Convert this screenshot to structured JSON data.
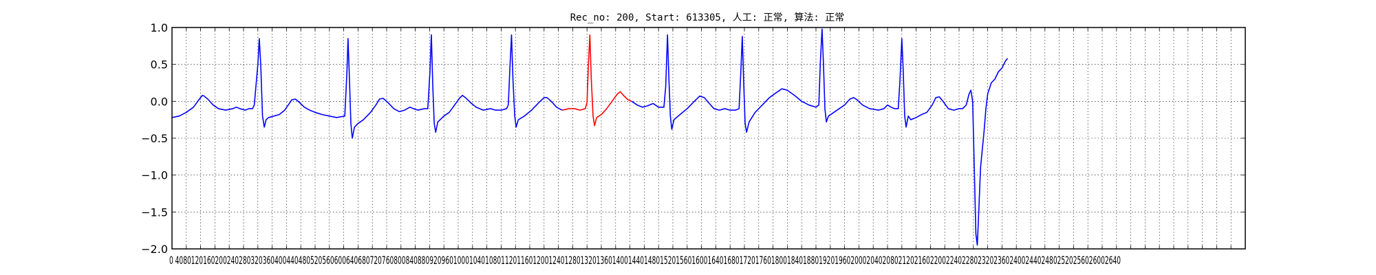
{
  "chart_data": {
    "type": "line",
    "title": "Rec_no: 200, Start: 613305, 人工: 正常, 算法: 正常",
    "xlabel": "",
    "ylabel": "",
    "xlim": [
      0,
      3000
    ],
    "ylim": [
      -2.0,
      1.0
    ],
    "grid": true,
    "xtick_step": 40,
    "y_ticks": [
      1.0,
      0.5,
      0.0,
      -0.5,
      -1.0,
      -1.5,
      -2.0
    ],
    "y_tick_labels": [
      "1.0",
      "0.5",
      "0.0",
      "−0.5",
      "−1.0",
      "−1.5",
      "−2.0"
    ],
    "x_tick_labels_visible": "0 4080120160200240280320360400440480520560600640680720760800840880920960100010401080112011601200124012801320136014001440148015201560160016401680172017601800184018801920196020002040208021202160220022402280232023602400244024802520256026002640",
    "series": [
      {
        "color": "#0000ff",
        "points": [
          [
            0,
            -0.22
          ],
          [
            20,
            -0.2
          ],
          [
            40,
            -0.15
          ],
          [
            60,
            -0.08
          ],
          [
            75,
            0.02
          ],
          [
            85,
            0.08
          ],
          [
            90,
            0.07
          ],
          [
            100,
            0.03
          ],
          [
            115,
            -0.05
          ],
          [
            130,
            -0.1
          ],
          [
            150,
            -0.12
          ],
          [
            170,
            -0.1
          ],
          [
            180,
            -0.08
          ],
          [
            190,
            -0.1
          ],
          [
            205,
            -0.12
          ],
          [
            215,
            -0.1
          ],
          [
            225,
            -0.1
          ],
          [
            230,
            -0.05
          ],
          [
            240,
            0.5
          ],
          [
            244,
            0.85
          ],
          [
            248,
            0.5
          ],
          [
            253,
            -0.2
          ],
          [
            258,
            -0.35
          ],
          [
            263,
            -0.25
          ],
          [
            270,
            -0.22
          ],
          [
            285,
            -0.2
          ],
          [
            300,
            -0.18
          ],
          [
            315,
            -0.12
          ],
          [
            325,
            -0.05
          ],
          [
            335,
            0.02
          ],
          [
            345,
            0.03
          ],
          [
            355,
            -0.01
          ],
          [
            370,
            -0.08
          ],
          [
            385,
            -0.12
          ],
          [
            400,
            -0.15
          ],
          [
            420,
            -0.18
          ],
          [
            440,
            -0.2
          ],
          [
            460,
            -0.22
          ],
          [
            483,
            -0.2
          ],
          [
            489,
            0.4
          ],
          [
            492,
            0.85
          ],
          [
            496,
            0.3
          ],
          [
            500,
            -0.3
          ],
          [
            504,
            -0.5
          ],
          [
            510,
            -0.35
          ],
          [
            520,
            -0.3
          ],
          [
            535,
            -0.25
          ],
          [
            555,
            -0.15
          ],
          [
            570,
            -0.05
          ],
          [
            580,
            0.03
          ],
          [
            590,
            0.04
          ],
          [
            600,
            0.0
          ],
          [
            620,
            -0.1
          ],
          [
            635,
            -0.14
          ],
          [
            650,
            -0.12
          ],
          [
            665,
            -0.08
          ],
          [
            675,
            -0.1
          ],
          [
            688,
            -0.12
          ],
          [
            705,
            -0.1
          ],
          [
            715,
            -0.1
          ],
          [
            721,
            0.4
          ],
          [
            725,
            0.9
          ],
          [
            729,
            0.2
          ],
          [
            733,
            -0.3
          ],
          [
            737,
            -0.42
          ],
          [
            743,
            -0.28
          ],
          [
            760,
            -0.2
          ],
          [
            775,
            -0.15
          ],
          [
            790,
            -0.05
          ],
          [
            805,
            0.05
          ],
          [
            812,
            0.08
          ],
          [
            820,
            0.05
          ],
          [
            835,
            -0.02
          ],
          [
            850,
            -0.08
          ],
          [
            870,
            -0.12
          ],
          [
            890,
            -0.1
          ],
          [
            905,
            -0.12
          ],
          [
            920,
            -0.12
          ],
          [
            935,
            -0.1
          ],
          [
            940,
            -0.05
          ],
          [
            945,
            0.5
          ],
          [
            949,
            0.9
          ],
          [
            953,
            0.3
          ],
          [
            958,
            -0.2
          ],
          [
            962,
            -0.35
          ],
          [
            968,
            -0.25
          ],
          [
            985,
            -0.2
          ],
          [
            1005,
            -0.12
          ],
          [
            1025,
            -0.02
          ],
          [
            1040,
            0.05
          ],
          [
            1048,
            0.05
          ],
          [
            1060,
            0.0
          ],
          [
            1075,
            -0.08
          ],
          [
            1090,
            -0.12
          ]
        ]
      },
      {
        "color": "#ff0000",
        "points": [
          [
            1090,
            -0.12
          ],
          [
            1110,
            -0.1
          ],
          [
            1125,
            -0.1
          ],
          [
            1140,
            -0.12
          ],
          [
            1155,
            -0.1
          ],
          [
            1160,
            -0.02
          ],
          [
            1164,
            0.5
          ],
          [
            1168,
            0.9
          ],
          [
            1172,
            0.3
          ],
          [
            1177,
            -0.2
          ],
          [
            1181,
            -0.33
          ],
          [
            1187,
            -0.22
          ],
          [
            1200,
            -0.18
          ],
          [
            1215,
            -0.1
          ],
          [
            1230,
            0.0
          ],
          [
            1245,
            0.1
          ],
          [
            1253,
            0.13
          ],
          [
            1262,
            0.08
          ],
          [
            1275,
            0.02
          ],
          [
            1285,
            0.0
          ]
        ]
      },
      {
        "color": "#0000ff",
        "points": [
          [
            1285,
            0.0
          ],
          [
            1300,
            -0.05
          ],
          [
            1315,
            -0.08
          ],
          [
            1330,
            -0.06
          ],
          [
            1345,
            -0.03
          ],
          [
            1360,
            -0.08
          ],
          [
            1375,
            -0.08
          ],
          [
            1380,
            0.2
          ],
          [
            1385,
            0.9
          ],
          [
            1389,
            0.3
          ],
          [
            1393,
            -0.2
          ],
          [
            1397,
            -0.38
          ],
          [
            1403,
            -0.25
          ],
          [
            1420,
            -0.18
          ],
          [
            1440,
            -0.1
          ],
          [
            1460,
            0.0
          ],
          [
            1475,
            0.07
          ],
          [
            1488,
            0.05
          ],
          [
            1500,
            -0.02
          ],
          [
            1515,
            -0.1
          ],
          [
            1530,
            -0.12
          ],
          [
            1545,
            -0.1
          ],
          [
            1560,
            -0.12
          ],
          [
            1575,
            -0.12
          ],
          [
            1585,
            -0.1
          ],
          [
            1590,
            0.4
          ],
          [
            1594,
            0.88
          ],
          [
            1598,
            0.25
          ],
          [
            1602,
            -0.3
          ],
          [
            1606,
            -0.42
          ],
          [
            1613,
            -0.28
          ],
          [
            1630,
            -0.15
          ],
          [
            1650,
            -0.05
          ],
          [
            1670,
            0.05
          ],
          [
            1690,
            0.12
          ],
          [
            1705,
            0.17
          ],
          [
            1720,
            0.15
          ],
          [
            1740,
            0.08
          ],
          [
            1760,
            0.0
          ],
          [
            1780,
            -0.05
          ],
          [
            1800,
            -0.08
          ],
          [
            1808,
            -0.05
          ],
          [
            1812,
            0.5
          ],
          [
            1817,
            0.98
          ],
          [
            1821,
            0.5
          ],
          [
            1825,
            -0.1
          ],
          [
            1829,
            -0.28
          ],
          [
            1835,
            -0.2
          ],
          [
            1850,
            -0.15
          ],
          [
            1865,
            -0.1
          ],
          [
            1880,
            -0.05
          ],
          [
            1895,
            0.03
          ],
          [
            1905,
            0.05
          ],
          [
            1915,
            0.02
          ],
          [
            1930,
            -0.05
          ],
          [
            1950,
            -0.1
          ],
          [
            1975,
            -0.12
          ],
          [
            1990,
            -0.1
          ],
          [
            2000,
            -0.05
          ],
          [
            2010,
            -0.08
          ],
          [
            2020,
            -0.1
          ],
          [
            2030,
            -0.1
          ],
          [
            2035,
            0.3
          ],
          [
            2040,
            0.85
          ],
          [
            2044,
            0.4
          ],
          [
            2048,
            -0.2
          ],
          [
            2052,
            -0.35
          ],
          [
            2058,
            -0.2
          ],
          [
            2065,
            -0.25
          ],
          [
            2080,
            -0.22
          ],
          [
            2095,
            -0.18
          ],
          [
            2110,
            -0.15
          ],
          [
            2125,
            -0.05
          ],
          [
            2135,
            0.05
          ],
          [
            2145,
            0.06
          ],
          [
            2155,
            0.0
          ],
          [
            2170,
            -0.1
          ],
          [
            2185,
            -0.12
          ],
          [
            2200,
            -0.1
          ],
          [
            2210,
            -0.1
          ],
          [
            2220,
            -0.05
          ],
          [
            2228,
            0.1
          ],
          [
            2233,
            0.15
          ],
          [
            2238,
            0.0
          ],
          [
            2243,
            -1.0
          ],
          [
            2247,
            -1.8
          ],
          [
            2251,
            -1.95
          ],
          [
            2255,
            -1.5
          ],
          [
            2260,
            -0.9
          ],
          [
            2265,
            -0.65
          ],
          [
            2270,
            -0.4
          ],
          [
            2275,
            -0.1
          ],
          [
            2280,
            0.1
          ],
          [
            2290,
            0.25
          ],
          [
            2300,
            0.3
          ],
          [
            2310,
            0.4
          ],
          [
            2320,
            0.45
          ],
          [
            2330,
            0.55
          ],
          [
            2336,
            0.58
          ]
        ]
      }
    ]
  }
}
